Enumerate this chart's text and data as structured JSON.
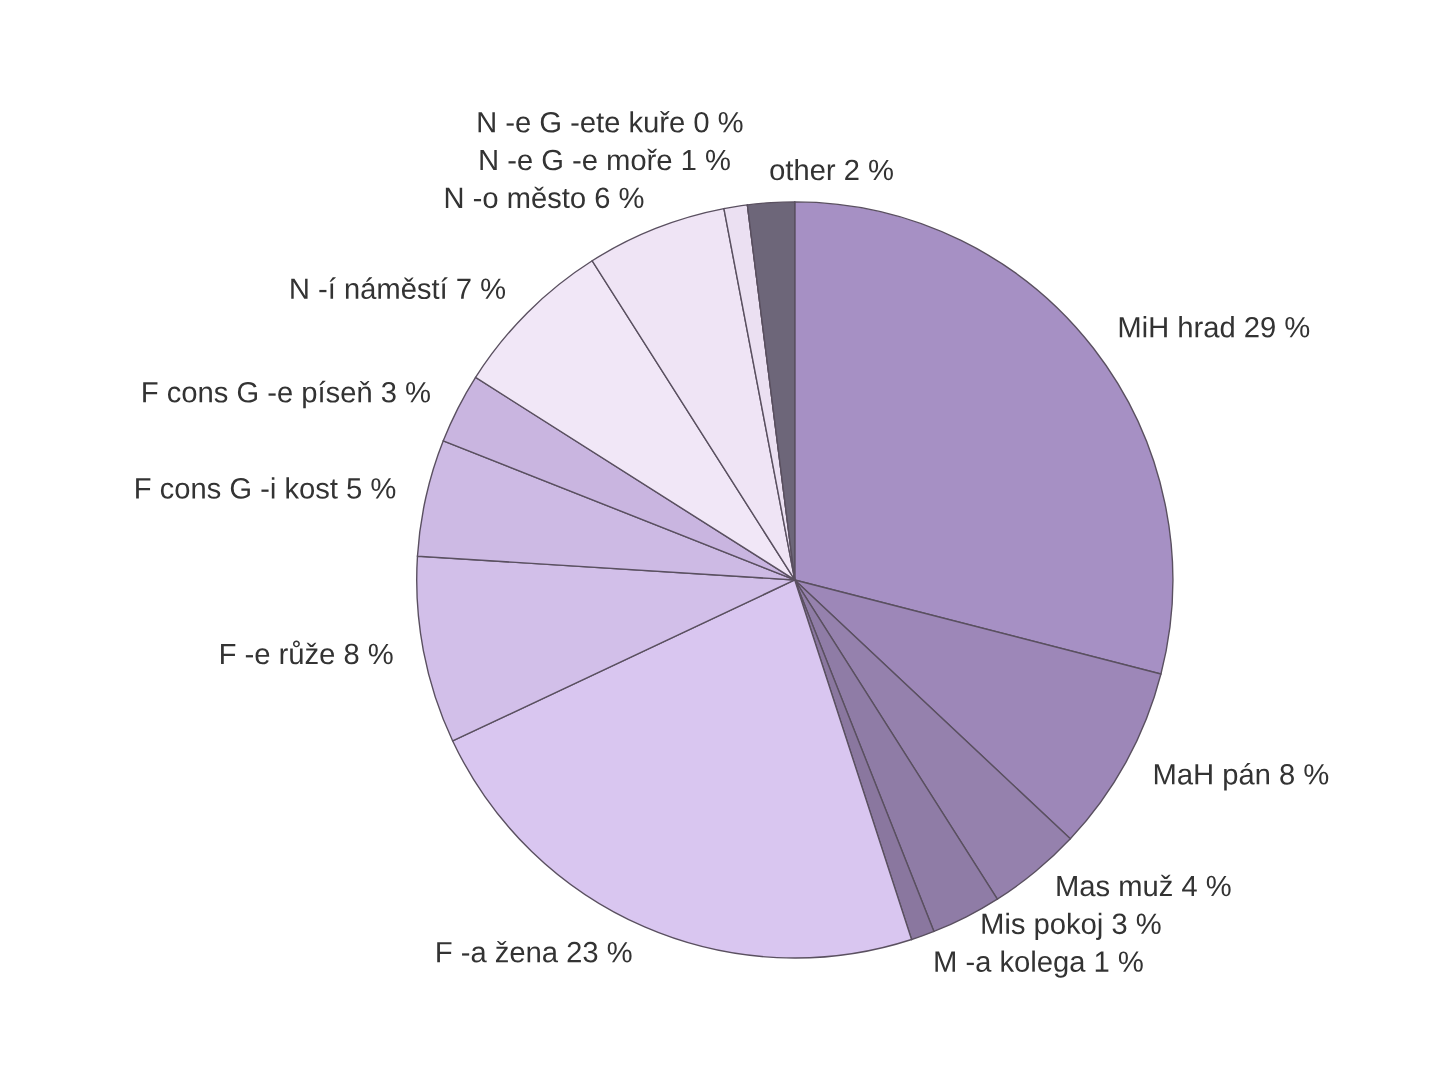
{
  "chart_data": {
    "type": "pie",
    "categories": [
      "MiH hrad",
      "MaH pán",
      "Mas muž",
      "Mis pokoj",
      "M -a kolega",
      "F -a žena",
      "F -e růže",
      "F cons G -i kost",
      "F cons G -e píseň",
      "N -í náměstí",
      "N -o město",
      "N -e G -e moře",
      "N -e G -ete kuře",
      "other"
    ],
    "values": [
      29,
      8,
      4,
      3,
      1,
      23,
      8,
      5,
      3,
      7,
      6,
      1,
      0,
      2
    ],
    "value_labels": [
      "29 %",
      "8 %",
      "4 %",
      "3 %",
      "1 %",
      "23 %",
      "8 %",
      "5 %",
      "3 %",
      "7 %",
      "6 %",
      "1 %",
      "0 %",
      "2 %"
    ],
    "colors": [
      "#a690c4",
      "#9d87b8",
      "#9581ad",
      "#8f7ca6",
      "#8a779f",
      "#d9c6f0",
      "#d2bfe9",
      "#cdbae4",
      "#c9b5e0",
      "#f1e7f7",
      "#efe4f5",
      "#ebe0f2",
      "#e8ddee",
      "#6d6679"
    ],
    "legend": false
  }
}
